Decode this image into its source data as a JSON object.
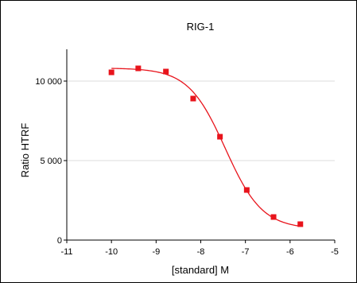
{
  "chart_data": {
    "type": "scatter",
    "title": "RIG-1",
    "xlabel": "[standard] M",
    "ylabel": "Ratio HTRF",
    "xlim": [
      -11,
      -5
    ],
    "ylim": [
      0,
      12000
    ],
    "x_ticks": [
      -11,
      -10,
      -9,
      -8,
      -7,
      -6,
      -5
    ],
    "y_ticks": [
      0,
      5000,
      10000
    ],
    "x_tick_labels": [
      "-11",
      "-10",
      "-9",
      "-8",
      "-7",
      "-6",
      "-5"
    ],
    "y_tick_labels": [
      "0",
      "5 000",
      "10 000"
    ],
    "grid": "horizontal",
    "legend": "none",
    "color": "#e8141c",
    "series": [
      {
        "points": [
          {
            "x": -10.0,
            "y": 10550
          },
          {
            "x": -9.4,
            "y": 10800
          },
          {
            "x": -8.78,
            "y": 10600
          },
          {
            "x": -8.17,
            "y": 8900
          },
          {
            "x": -7.57,
            "y": 6500
          },
          {
            "x": -6.97,
            "y": 3150
          },
          {
            "x": -6.37,
            "y": 1450
          },
          {
            "x": -5.77,
            "y": 1000
          }
        ],
        "fit": {
          "model": "4PL",
          "top": 10820,
          "bottom": 700,
          "log_ic50": -7.45,
          "hill_slope": -1.05,
          "x_range": [
            -10,
            -5.77
          ]
        }
      }
    ]
  }
}
